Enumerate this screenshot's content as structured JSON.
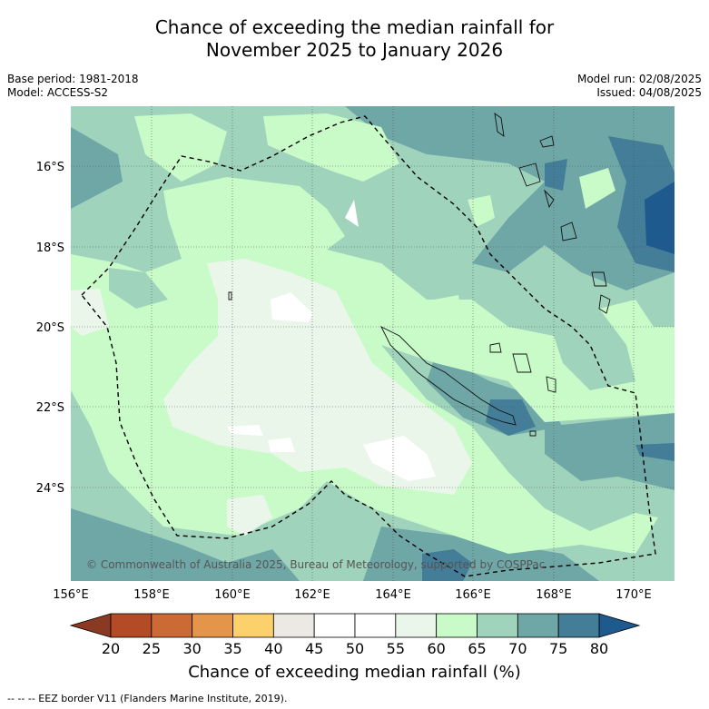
{
  "title_line1": "Chance of exceeding the median rainfall for",
  "title_line2": "November 2025 to January 2026",
  "meta_left": {
    "base_period": "Base period: 1981-2018",
    "model": "Model: ACCESS-S2"
  },
  "meta_right": {
    "model_run": "Model run: 02/08/2025",
    "issued": "Issued: 04/08/2025"
  },
  "map": {
    "lat_labels": [
      "16°S",
      "18°S",
      "20°S",
      "22°S",
      "24°S"
    ],
    "lon_labels": [
      "156°E",
      "158°E",
      "160°E",
      "162°E",
      "164°E",
      "166°E",
      "168°E",
      "170°E"
    ],
    "copyright": "© Commonwealth of Australia 2025, Bureau of Meteorology, supported by COSPPac"
  },
  "colorbar": {
    "ticks": [
      "20",
      "25",
      "30",
      "35",
      "40",
      "45",
      "50",
      "55",
      "60",
      "65",
      "70",
      "75",
      "80"
    ],
    "colors": [
      "#b34b26",
      "#cc6a35",
      "#e4954a",
      "#fcd06a",
      "#ece9e4",
      "#ffffff",
      "#ffffff",
      "#eaf6ea",
      "#c9fbc9",
      "#9fd3bb",
      "#6fa7a7",
      "#447d98"
    ],
    "under_color": "#8a3a22",
    "over_color": "#1f5a8f",
    "label": "Chance of exceeding median rainfall (%)"
  },
  "legend_note": "--  --  -- EEZ border V11 (Flanders Marine Institute, 2019)."
}
